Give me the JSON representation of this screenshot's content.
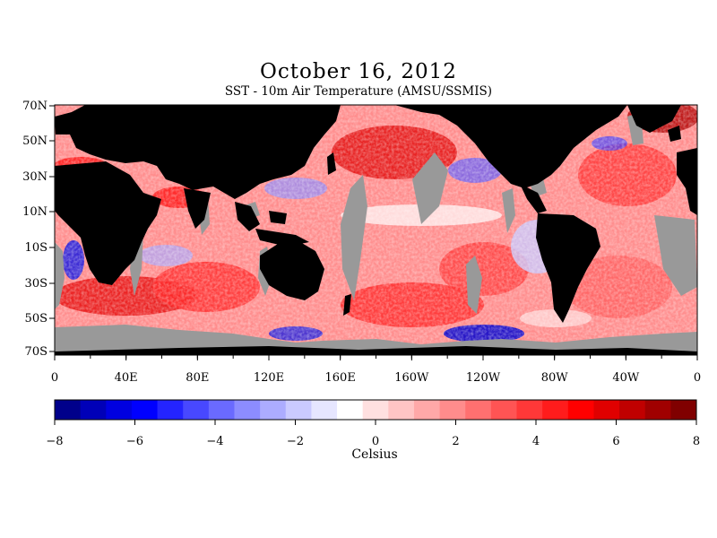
{
  "map": {
    "title": "October 16, 2012",
    "subtitle": "SST - 10m Air Temperature (AMSU/SSMIS)",
    "lat_labels": [
      "70N",
      "50N",
      "30N",
      "10N",
      "10S",
      "30S",
      "50S",
      "70S"
    ],
    "lon_labels": [
      "0",
      "40E",
      "80E",
      "120E",
      "160E",
      "160W",
      "120W",
      "80W",
      "40W",
      "0"
    ],
    "colors": {
      "land": "#000000",
      "missing": "#999999",
      "ocean_base": "#ff8a8a"
    }
  },
  "colorbar": {
    "ticks": [
      "−8",
      "−6",
      "−4",
      "−2",
      "0",
      "2",
      "4",
      "6",
      "8"
    ],
    "units": "Celsius",
    "range": [
      -8,
      8
    ],
    "colors": [
      "#00008b",
      "#0000b8",
      "#0000e0",
      "#0000ff",
      "#2424ff",
      "#4848ff",
      "#6a6aff",
      "#8c8cff",
      "#acacff",
      "#cacaff",
      "#e6e6ff",
      "#ffffff",
      "#ffe0e0",
      "#ffc4c4",
      "#ffa8a8",
      "#ff8c8c",
      "#ff7070",
      "#ff5454",
      "#ff3838",
      "#ff1c1c",
      "#ff0000",
      "#e00000",
      "#c00000",
      "#a00000",
      "#800000"
    ]
  }
}
